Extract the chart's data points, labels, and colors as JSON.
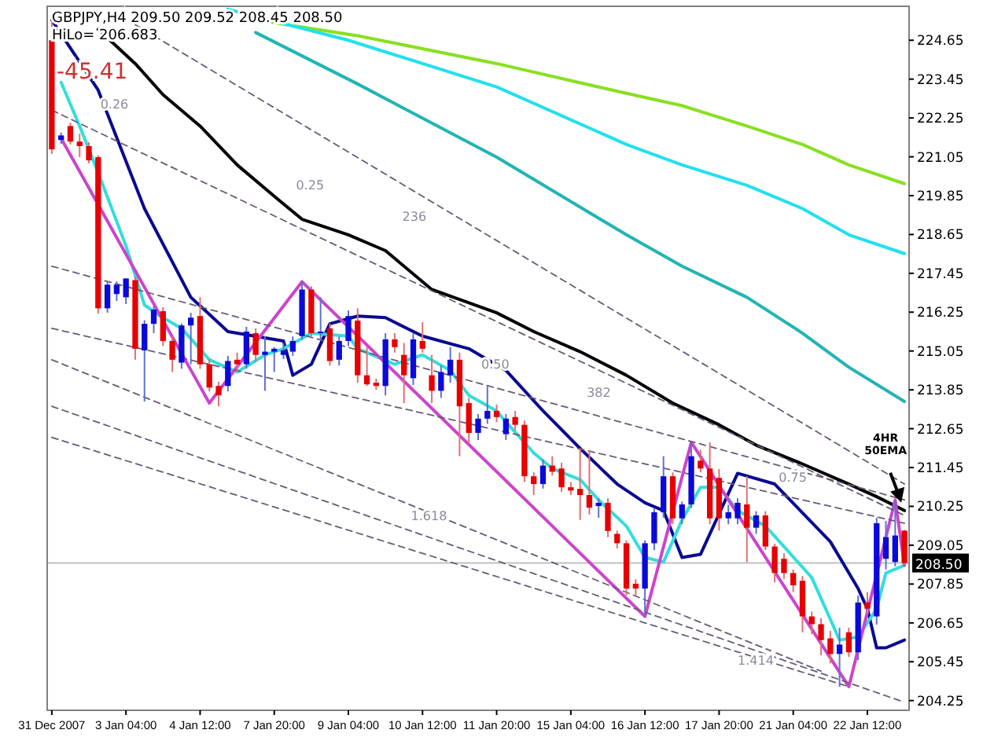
{
  "chart_data": {
    "type": "candlestick",
    "title": "GBPJPY,H4  209.50 209.52 208.45 208.50",
    "subtitle": "HiLo= 206.683",
    "categories": [
      "31 Dec 2007",
      null,
      null,
      null,
      null,
      null,
      null,
      null,
      "3 Jan 04:00",
      null,
      null,
      null,
      null,
      null,
      null,
      null,
      "4 Jan 12:00",
      null,
      null,
      null,
      null,
      null,
      null,
      null,
      "7 Jan 20:00",
      null,
      null,
      null,
      null,
      null,
      null,
      null,
      "9 Jan 04:00",
      null,
      null,
      null,
      null,
      null,
      null,
      null,
      "10 Jan 12:00",
      null,
      null,
      null,
      null,
      null,
      null,
      null,
      "11 Jan 20:00",
      null,
      null,
      null,
      null,
      null,
      null,
      null,
      "15 Jan 04:00",
      null,
      null,
      null,
      null,
      null,
      null,
      null,
      "16 Jan 12:00",
      null,
      null,
      null,
      null,
      null,
      null,
      null,
      "17 Jan 20:00",
      null,
      null,
      null,
      null,
      null,
      null,
      null,
      "21 Jan 04:00",
      null,
      null,
      null,
      null,
      null,
      null,
      null,
      "22 Jan 12:00",
      null,
      null,
      null,
      null
    ],
    "ylim": [
      203.95,
      225.7
    ],
    "yticks": [
      224.65,
      223.45,
      222.25,
      221.05,
      219.85,
      218.65,
      217.45,
      216.25,
      215.05,
      213.85,
      212.65,
      211.45,
      210.25,
      209.05,
      207.85,
      206.65,
      205.45,
      204.25
    ],
    "ohlc": [
      [
        224.65,
        225.28,
        221.14,
        221.28
      ],
      [
        221.57,
        221.8,
        221.45,
        221.71
      ],
      [
        222.0,
        222.1,
        221.43,
        221.52
      ],
      [
        221.52,
        221.76,
        221.04,
        221.38
      ],
      [
        221.38,
        221.5,
        220.85,
        220.94
      ],
      [
        221.04,
        221.1,
        216.2,
        216.37
      ],
      [
        216.37,
        217.19,
        216.23,
        217.1
      ],
      [
        216.81,
        217.2,
        216.6,
        217.1
      ],
      [
        216.71,
        217.3,
        216.5,
        217.29
      ],
      [
        217.24,
        217.35,
        214.78,
        215.12
      ],
      [
        215.07,
        216.0,
        213.49,
        215.89
      ],
      [
        215.89,
        216.45,
        215.6,
        216.33
      ],
      [
        216.28,
        216.4,
        215.2,
        215.36
      ],
      [
        215.36,
        215.5,
        214.4,
        214.78
      ],
      [
        214.69,
        215.9,
        214.5,
        215.84
      ],
      [
        215.84,
        216.23,
        214.64,
        216.08
      ],
      [
        216.13,
        216.71,
        214.5,
        214.64
      ],
      [
        214.64,
        214.8,
        213.8,
        213.92
      ],
      [
        213.97,
        214.1,
        213.34,
        213.68
      ],
      [
        213.97,
        214.9,
        213.8,
        214.74
      ],
      [
        214.78,
        215.0,
        214.4,
        214.64
      ],
      [
        214.64,
        215.8,
        214.5,
        215.65
      ],
      [
        215.6,
        215.75,
        214.7,
        214.93
      ],
      [
        214.93,
        215.51,
        213.82,
        215.03
      ],
      [
        215.03,
        215.17,
        214.4,
        215.12
      ],
      [
        214.93,
        215.3,
        214.8,
        215.07
      ],
      [
        215.03,
        215.5,
        214.9,
        215.36
      ],
      [
        215.51,
        217.19,
        215.4,
        216.95
      ],
      [
        216.95,
        217.05,
        215.5,
        215.6
      ],
      [
        215.6,
        216.71,
        215.41,
        215.65
      ],
      [
        215.75,
        215.9,
        214.6,
        214.74
      ],
      [
        214.78,
        215.5,
        214.6,
        215.36
      ],
      [
        215.36,
        216.3,
        215.2,
        216.13
      ],
      [
        215.99,
        216.37,
        214.07,
        214.3
      ],
      [
        214.3,
        215.17,
        213.97,
        214.02
      ],
      [
        214.07,
        214.2,
        213.85,
        213.97
      ],
      [
        213.97,
        215.6,
        213.68,
        215.41
      ],
      [
        215.41,
        215.6,
        215.0,
        215.17
      ],
      [
        214.93,
        215.3,
        213.44,
        214.3
      ],
      [
        214.21,
        215.6,
        214.0,
        215.41
      ],
      [
        215.36,
        215.94,
        215.0,
        215.12
      ],
      [
        214.3,
        214.93,
        213.44,
        213.82
      ],
      [
        213.82,
        214.6,
        213.6,
        214.4
      ],
      [
        214.3,
        215.17,
        214.07,
        214.78
      ],
      [
        214.78,
        215.0,
        211.8,
        213.34
      ],
      [
        213.44,
        213.6,
        212.2,
        212.52
      ],
      [
        212.52,
        213.1,
        212.3,
        212.96
      ],
      [
        212.96,
        213.97,
        212.8,
        213.2
      ],
      [
        213.2,
        213.4,
        212.85,
        213.01
      ],
      [
        212.48,
        213.1,
        212.3,
        212.96
      ],
      [
        213.01,
        213.2,
        212.6,
        212.77
      ],
      [
        212.77,
        212.9,
        211.0,
        211.18
      ],
      [
        211.18,
        211.3,
        210.6,
        210.94
      ],
      [
        210.94,
        211.7,
        210.8,
        211.51
      ],
      [
        211.51,
        211.8,
        211.2,
        211.32
      ],
      [
        211.42,
        211.6,
        210.7,
        210.84
      ],
      [
        210.84,
        211.0,
        210.6,
        210.74
      ],
      [
        210.79,
        212.04,
        209.83,
        210.6
      ],
      [
        210.6,
        211.99,
        210.0,
        210.21
      ],
      [
        210.26,
        210.5,
        209.9,
        210.36
      ],
      [
        210.36,
        210.5,
        209.3,
        209.49
      ],
      [
        209.4,
        209.5,
        208.95,
        209.11
      ],
      [
        209.11,
        209.2,
        207.5,
        207.71
      ],
      [
        207.86,
        208.0,
        207.5,
        207.71
      ],
      [
        207.71,
        209.2,
        206.85,
        209.11
      ],
      [
        209.11,
        210.2,
        208.9,
        210.07
      ],
      [
        210.07,
        211.8,
        209.9,
        211.18
      ],
      [
        211.18,
        211.3,
        209.7,
        209.88
      ],
      [
        209.88,
        210.4,
        209.7,
        210.31
      ],
      [
        210.31,
        212.23,
        210.2,
        211.8
      ],
      [
        211.66,
        212.0,
        211.3,
        211.42
      ],
      [
        211.42,
        212.23,
        209.7,
        209.88
      ],
      [
        211.13,
        211.4,
        209.5,
        209.88
      ],
      [
        209.88,
        210.3,
        209.7,
        210.07
      ],
      [
        209.88,
        210.5,
        209.7,
        210.36
      ],
      [
        210.31,
        211.18,
        208.53,
        209.59
      ],
      [
        209.59,
        210.1,
        209.4,
        209.97
      ],
      [
        209.97,
        210.1,
        208.9,
        209.01
      ],
      [
        209.01,
        209.1,
        207.9,
        208.19
      ],
      [
        208.63,
        208.8,
        208.0,
        208.19
      ],
      [
        208.19,
        208.3,
        207.6,
        207.81
      ],
      [
        207.95,
        208.1,
        206.36,
        206.85
      ],
      [
        206.85,
        207.0,
        206.3,
        206.61
      ],
      [
        206.61,
        206.8,
        205.65,
        206.12
      ],
      [
        206.17,
        206.4,
        205.4,
        205.69
      ],
      [
        205.69,
        206.5,
        204.68,
        205.98
      ],
      [
        206.36,
        206.5,
        205.6,
        205.74
      ],
      [
        205.74,
        207.5,
        205.5,
        207.28
      ],
      [
        207.28,
        207.6,
        206.9,
        207.09
      ],
      [
        206.85,
        209.9,
        206.6,
        209.73
      ],
      [
        208.63,
        209.8,
        208.3,
        209.3
      ],
      [
        208.53,
        210.45,
        208.4,
        209.35
      ],
      [
        209.5,
        209.52,
        208.45,
        208.5
      ]
    ],
    "series": [
      {
        "type": "line",
        "color": "#000000",
        "values": [
          null,
          null,
          null,
          null,
          null,
          224.99,
          null,
          null,
          null,
          223.93,
          null,
          null,
          222.97,
          null,
          null,
          null,
          222.0,
          null,
          null,
          null,
          220.8,
          null,
          null,
          null,
          219.83,
          null,
          null,
          219.12,
          null,
          null,
          null,
          null,
          218.64,
          null,
          null,
          null,
          218.15,
          null,
          null,
          null,
          null,
          216.95,
          null,
          null,
          null,
          null,
          null,
          null,
          216.23,
          null,
          null,
          null,
          215.65,
          null,
          null,
          null,
          null,
          215.03,
          null,
          null,
          null,
          null,
          214.3,
          null,
          null,
          null,
          null,
          213.44,
          null,
          null,
          null,
          null,
          212.77,
          null,
          null,
          null,
          212.14,
          null,
          null,
          null,
          null,
          211.56,
          null,
          null,
          null,
          null,
          210.94,
          null,
          null,
          210.55,
          null,
          null,
          210.12
        ]
      },
      {
        "type": "line",
        "color": "#0a0a90",
        "values": [
          225.28,
          null,
          null,
          null,
          null,
          223.11,
          null,
          null,
          null,
          null,
          219.45,
          null,
          null,
          null,
          null,
          216.71,
          null,
          null,
          null,
          215.65,
          null,
          null,
          null,
          null,
          null,
          215.36,
          214.3,
          null,
          214.64,
          null,
          215.89,
          null,
          null,
          216.13,
          null,
          null,
          216.08,
          null,
          null,
          null,
          215.51,
          null,
          null,
          null,
          null,
          215.12,
          null,
          null,
          null,
          214.45,
          null,
          null,
          null,
          213.2,
          null,
          null,
          null,
          212.04,
          null,
          null,
          null,
          210.94,
          null,
          null,
          210.36,
          null,
          210.12,
          null,
          208.67,
          null,
          208.77,
          null,
          null,
          null,
          211.27,
          null,
          null,
          null,
          210.94,
          null,
          null,
          null,
          null,
          null,
          209.16,
          null,
          null,
          207.71,
          207.09,
          205.88,
          205.88,
          null,
          206.12
        ]
      },
      {
        "type": "line",
        "color": "#33dddd",
        "values": [
          null,
          223.35,
          null,
          222.0,
          null,
          220.56,
          null,
          null,
          218.3,
          null,
          216.47,
          null,
          216.08,
          null,
          215.75,
          null,
          null,
          214.78,
          null,
          null,
          214.4,
          null,
          null,
          214.93,
          null,
          215.12,
          null,
          null,
          215.6,
          null,
          null,
          null,
          215.51,
          215.12,
          null,
          null,
          null,
          214.64,
          null,
          null,
          214.93,
          null,
          null,
          214.45,
          null,
          213.68,
          null,
          null,
          213.2,
          212.86,
          null,
          null,
          211.9,
          null,
          211.42,
          null,
          null,
          211.08,
          null,
          210.45,
          null,
          null,
          209.64,
          null,
          208.67,
          null,
          208.53,
          null,
          209.83,
          null,
          210.84,
          null,
          210.84,
          null,
          210.12,
          null,
          null,
          209.64,
          null,
          209.01,
          null,
          null,
          208.05,
          null,
          null,
          206.12,
          null,
          206.22,
          null,
          207.09,
          208.19,
          null,
          208.43
        ]
      },
      {
        "type": "line",
        "color": "#88e020",
        "values": [
          null,
          null,
          null,
          null,
          null,
          null,
          null,
          null,
          null,
          null,
          null,
          null,
          null,
          null,
          null,
          null,
          null,
          null,
          null,
          null,
          null,
          null,
          225.28,
          null,
          null,
          null,
          null,
          null,
          null,
          null,
          null,
          null,
          null,
          224.79,
          null,
          null,
          null,
          null,
          null,
          null,
          null,
          null,
          null,
          null,
          null,
          null,
          null,
          null,
          223.93,
          null,
          null,
          null,
          null,
          null,
          null,
          null,
          null,
          null,
          null,
          null,
          null,
          null,
          223.01,
          null,
          null,
          null,
          null,
          null,
          222.63,
          null,
          null,
          null,
          null,
          null,
          null,
          222.0,
          null,
          null,
          null,
          null,
          null,
          221.43,
          null,
          null,
          null,
          null,
          220.8,
          null,
          null,
          null,
          null,
          null,
          220.22
        ]
      },
      {
        "type": "line",
        "color": "#22e0ee",
        "values": [
          null,
          null,
          null,
          null,
          null,
          null,
          null,
          null,
          null,
          null,
          null,
          null,
          null,
          null,
          null,
          null,
          null,
          null,
          null,
          225.61,
          null,
          null,
          null,
          null,
          null,
          null,
          null,
          null,
          null,
          null,
          null,
          null,
          224.65,
          null,
          null,
          null,
          null,
          null,
          null,
          null,
          null,
          null,
          null,
          null,
          null,
          null,
          null,
          null,
          223.21,
          null,
          null,
          null,
          null,
          null,
          null,
          null,
          null,
          null,
          null,
          null,
          null,
          null,
          221.43,
          null,
          null,
          null,
          null,
          null,
          220.8,
          null,
          null,
          null,
          null,
          null,
          null,
          220.17,
          null,
          null,
          null,
          null,
          null,
          219.45,
          null,
          null,
          null,
          null,
          218.64,
          null,
          null,
          null,
          null,
          null,
          218.06
        ]
      },
      {
        "type": "line",
        "color": "#22b4b4",
        "values": [
          null,
          null,
          null,
          null,
          null,
          null,
          null,
          null,
          null,
          null,
          null,
          null,
          null,
          null,
          null,
          null,
          null,
          null,
          null,
          null,
          null,
          null,
          224.89,
          null,
          null,
          null,
          null,
          null,
          null,
          null,
          null,
          null,
          null,
          223.3,
          null,
          null,
          null,
          null,
          null,
          null,
          null,
          null,
          null,
          null,
          null,
          null,
          null,
          null,
          221.04,
          null,
          null,
          null,
          null,
          null,
          null,
          null,
          null,
          null,
          null,
          null,
          null,
          null,
          218.64,
          null,
          null,
          null,
          null,
          null,
          217.67,
          null,
          null,
          null,
          null,
          null,
          null,
          216.71,
          null,
          null,
          null,
          null,
          null,
          215.6,
          null,
          null,
          null,
          null,
          214.55,
          null,
          null,
          null,
          null,
          null,
          213.49
        ]
      },
      {
        "type": "line",
        "color": "#cc44cc",
        "values": [
          null,
          221.62,
          null,
          null,
          null,
          null,
          null,
          null,
          null,
          null,
          null,
          null,
          null,
          null,
          null,
          null,
          null,
          213.44,
          null,
          null,
          null,
          null,
          null,
          null,
          null,
          null,
          null,
          217.19,
          null,
          null,
          null,
          null,
          null,
          null,
          null,
          null,
          null,
          null,
          null,
          null,
          null,
          null,
          null,
          null,
          null,
          null,
          null,
          null,
          null,
          null,
          null,
          null,
          null,
          null,
          null,
          null,
          null,
          null,
          null,
          null,
          null,
          null,
          null,
          null,
          206.85,
          null,
          null,
          null,
          null,
          212.23,
          null,
          null,
          null,
          null,
          null,
          null,
          null,
          null,
          null,
          null,
          null,
          null,
          null,
          null,
          null,
          null,
          204.68,
          null,
          null,
          null,
          null,
          210.45,
          208.43
        ]
      },
      {
        "type": "line",
        "color": "#6a5a78",
        "line_style": "dashed",
        "values": [
          null,
          null,
          null,
          null,
          null,
          null,
          null,
          null,
          null,
          225.13,
          null,
          null,
          null,
          null,
          null,
          null,
          null,
          null,
          null,
          null,
          null,
          null,
          null,
          null,
          null,
          null,
          null,
          null,
          null,
          null,
          null,
          null,
          null,
          null,
          null,
          null,
          null,
          null,
          null,
          null,
          null,
          null,
          null,
          null,
          null,
          null,
          null,
          null,
          null,
          null,
          null,
          null,
          null,
          null,
          null,
          null,
          null,
          null,
          null,
          null,
          null,
          null,
          null,
          null,
          null,
          null,
          null,
          null,
          null,
          null,
          null,
          null,
          null,
          null,
          null,
          null,
          null,
          null,
          null,
          null,
          null,
          null,
          null,
          null,
          null,
          null,
          null,
          null,
          null,
          null,
          null,
          null,
          210.94
        ]
      },
      {
        "type": "line",
        "color": "#6a5a78",
        "line_style": "dashed",
        "values": [
          222.49,
          null,
          null,
          null,
          null,
          null,
          null,
          null,
          null,
          null,
          null,
          null,
          null,
          null,
          null,
          null,
          null,
          null,
          null,
          null,
          null,
          null,
          null,
          null,
          null,
          null,
          null,
          null,
          null,
          null,
          null,
          null,
          null,
          null,
          null,
          null,
          null,
          null,
          null,
          null,
          null,
          null,
          null,
          null,
          null,
          null,
          null,
          null,
          null,
          null,
          null,
          null,
          null,
          null,
          null,
          null,
          null,
          null,
          null,
          null,
          null,
          null,
          null,
          null,
          null,
          null,
          null,
          null,
          null,
          null,
          null,
          null,
          null,
          null,
          null,
          null,
          null,
          null,
          null,
          null,
          null,
          null,
          null,
          null,
          null,
          null,
          null,
          null,
          null,
          null,
          null,
          null,
          209.97
        ]
      },
      {
        "type": "line",
        "color": "#6a5a78",
        "line_style": "dashed",
        "values": [
          217.67,
          null,
          null,
          null,
          null,
          null,
          null,
          null,
          null,
          null,
          null,
          null,
          null,
          null,
          null,
          null,
          null,
          null,
          null,
          null,
          null,
          null,
          null,
          null,
          null,
          null,
          null,
          null,
          null,
          null,
          null,
          null,
          null,
          null,
          null,
          null,
          null,
          null,
          null,
          null,
          null,
          null,
          null,
          null,
          null,
          null,
          null,
          null,
          null,
          null,
          null,
          null,
          null,
          null,
          null,
          null,
          null,
          null,
          null,
          null,
          null,
          null,
          null,
          null,
          null,
          null,
          null,
          null,
          null,
          null,
          null,
          null,
          null,
          null,
          null,
          null,
          null,
          null,
          null,
          null,
          null,
          null,
          null,
          null,
          null,
          null,
          null,
          null,
          null,
          null,
          null,
          null,
          210.45
        ]
      },
      {
        "type": "line",
        "color": "#6a5a78",
        "line_style": "dashed",
        "values": [
          215.75,
          null,
          null,
          null,
          null,
          null,
          null,
          null,
          null,
          null,
          null,
          null,
          null,
          null,
          null,
          null,
          null,
          null,
          null,
          null,
          null,
          null,
          null,
          null,
          null,
          null,
          null,
          null,
          null,
          null,
          null,
          null,
          null,
          null,
          null,
          null,
          null,
          null,
          null,
          null,
          null,
          null,
          null,
          null,
          null,
          null,
          null,
          null,
          null,
          null,
          null,
          null,
          null,
          null,
          null,
          null,
          null,
          null,
          null,
          null,
          null,
          null,
          null,
          null,
          null,
          null,
          null,
          null,
          null,
          null,
          null,
          null,
          null,
          null,
          null,
          null,
          null,
          null,
          null,
          null,
          null,
          null,
          null,
          null,
          null,
          null,
          null,
          null,
          null,
          null,
          null,
          null,
          209.73
        ]
      },
      {
        "type": "line",
        "color": "#6a5a78",
        "line_style": "dashed",
        "values": [
          214.78,
          null,
          null,
          null,
          null,
          null,
          null,
          null,
          null,
          null,
          null,
          null,
          null,
          null,
          null,
          null,
          null,
          null,
          null,
          null,
          null,
          null,
          null,
          null,
          null,
          null,
          null,
          null,
          null,
          null,
          null,
          null,
          null,
          null,
          null,
          null,
          null,
          null,
          null,
          null,
          null,
          null,
          null,
          null,
          null,
          null,
          null,
          null,
          null,
          null,
          null,
          null,
          null,
          null,
          null,
          null,
          null,
          null,
          null,
          null,
          null,
          null,
          null,
          null,
          null,
          null,
          null,
          null,
          null,
          null,
          null,
          null,
          null,
          null,
          null,
          null,
          null,
          null,
          null,
          null,
          null,
          null,
          null,
          205.16,
          null,
          null,
          null,
          null,
          null,
          null,
          null,
          null,
          null
        ]
      },
      {
        "type": "line",
        "color": "#6a5a78",
        "line_style": "dashed",
        "values": [
          213.34,
          null,
          null,
          null,
          null,
          null,
          null,
          null,
          null,
          null,
          null,
          null,
          null,
          null,
          null,
          null,
          null,
          null,
          null,
          null,
          null,
          null,
          null,
          null,
          null,
          null,
          null,
          null,
          null,
          null,
          null,
          null,
          null,
          null,
          null,
          null,
          null,
          null,
          null,
          null,
          null,
          null,
          null,
          null,
          null,
          null,
          null,
          null,
          null,
          null,
          null,
          null,
          null,
          null,
          null,
          null,
          null,
          null,
          null,
          null,
          null,
          null,
          null,
          null,
          null,
          null,
          null,
          null,
          null,
          null,
          null,
          null,
          null,
          null,
          null,
          null,
          null,
          null,
          null,
          null,
          null,
          null,
          null,
          null,
          null,
          null,
          null,
          null,
          null,
          null,
          null,
          null,
          204.2
        ]
      },
      {
        "type": "line",
        "color": "#6a5a78",
        "line_style": "dashed",
        "values": [
          212.38,
          null,
          null,
          null,
          null,
          null,
          null,
          null,
          null,
          null,
          null,
          null,
          null,
          null,
          null,
          null,
          null,
          null,
          null,
          null,
          null,
          null,
          null,
          null,
          null,
          null,
          null,
          null,
          null,
          null,
          null,
          null,
          null,
          null,
          null,
          null,
          null,
          null,
          null,
          null,
          null,
          null,
          null,
          null,
          null,
          null,
          null,
          null,
          null,
          null,
          null,
          null,
          null,
          null,
          null,
          null,
          null,
          null,
          null,
          null,
          null,
          null,
          null,
          null,
          null,
          null,
          null,
          null,
          null,
          null,
          null,
          null,
          null,
          null,
          null,
          null,
          null,
          null,
          null,
          null,
          null,
          null,
          null,
          null,
          null,
          null,
          204.68,
          null,
          null,
          null,
          null,
          null,
          null
        ]
      }
    ],
    "ref_lines": [
      {
        "axis": "y",
        "value": 208.5,
        "label": "208.50",
        "color": "#c0c0c0"
      }
    ],
    "annotations": [
      "-45.41",
      "4HR 50EMA",
      "0.26",
      "0.25",
      "236",
      "0.50",
      "382",
      "1.618",
      "0.75",
      "1.414"
    ]
  }
}
